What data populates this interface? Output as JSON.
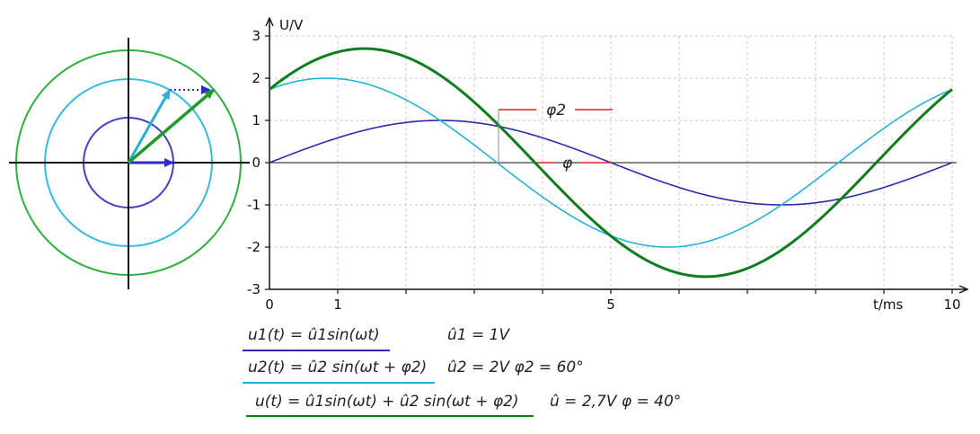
{
  "chart_data": {
    "type": "line",
    "xlabel": "t/ms",
    "ylabel": "U/V",
    "xlim": [
      0,
      10
    ],
    "ylim": [
      -3,
      3
    ],
    "x_tick_labels": [
      "0",
      "1",
      "5",
      "10"
    ],
    "x_tick_values": [
      0,
      1,
      5,
      10
    ],
    "y_tick_labels": [
      "-3",
      "-2",
      "-1",
      "0",
      "1",
      "2",
      "3"
    ],
    "y_tick_values": [
      -3,
      -2,
      -1,
      0,
      1,
      2,
      3
    ],
    "grid": true,
    "period_ms": 10,
    "series": [
      {
        "name": "",
        "amplitude": 1,
        "phase_deg": 0,
        "color": "#2b2bb0"
      },
      {
        "name": "",
        "amplitude": 2,
        "phase_deg": 60,
        "color": "#22b4d8"
      },
      {
        "name": "",
        "amplitude": 2.7,
        "phase_deg": 40,
        "color": "#0e7d1e"
      }
    ],
    "annotations": {
      "phi2_label": "φ2",
      "phi_label": "φ"
    }
  },
  "phasor": {
    "circle_radii_V": [
      1,
      2,
      2.7
    ],
    "colors": [
      "#4040c8",
      "#33bde0",
      "#2eb23e"
    ]
  },
  "equations": [
    {
      "lhs": "u1(t) = û1sin(ωt)",
      "values": "û1 = 1V",
      "color": "#2b2bb0"
    },
    {
      "lhs": "u2(t) = û2 sin(ωt + φ2)",
      "values": "û2 = 2V   φ2 = 60°",
      "color": "#22b4d8"
    },
    {
      "lhs": "u(t) = û1sin(ωt) + û2 sin(ωt + φ2)",
      "values": "û = 2,7V   φ = 40°",
      "color": "#0e7d1e"
    }
  ]
}
